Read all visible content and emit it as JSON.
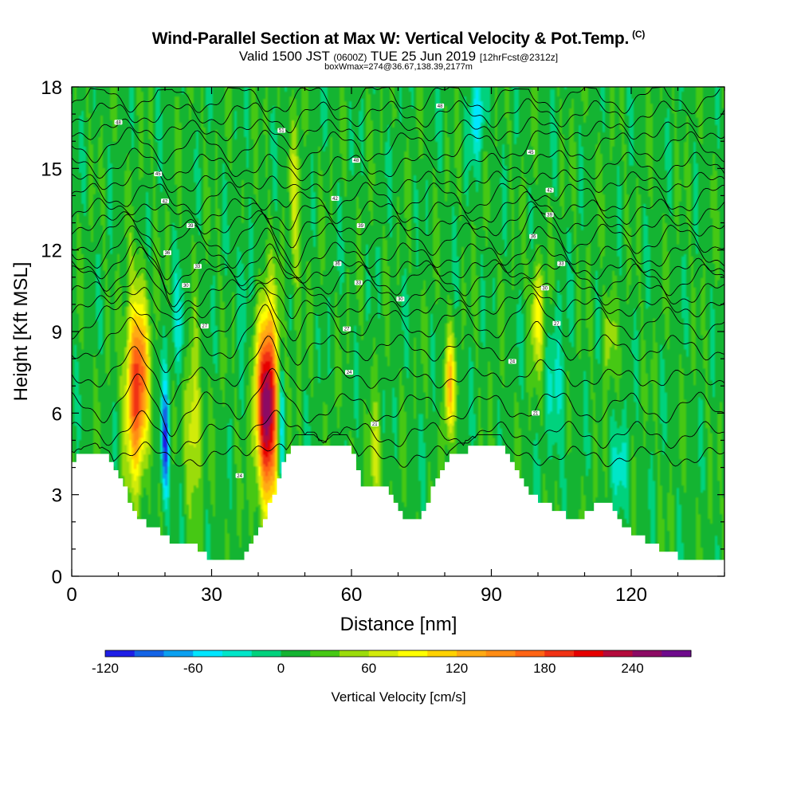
{
  "header": {
    "title": "Wind-Parallel Section at Max W: Vertical Velocity & Pot.Temp.",
    "title_mark": "(C)",
    "valid_prefix": "Valid 1500 JST",
    "valid_zulu": "(0600Z)",
    "valid_date": "TUE 25 Jun 2019",
    "forecast": "[12hrFcst@2312z]",
    "boxinfo": "boxWmax=274@36.67,138.39,2177m"
  },
  "chart_data": {
    "type": "heatmap",
    "xlabel": "Distance [nm]",
    "ylabel": "Height [Kft MSL]",
    "xlim": [
      0,
      140
    ],
    "ylim": [
      0,
      18
    ],
    "x_ticks": [
      0,
      30,
      60,
      90,
      120
    ],
    "y_ticks": [
      0,
      3,
      6,
      9,
      12,
      15,
      18
    ],
    "terrain_kft": [
      [
        0,
        4.3
      ],
      [
        5,
        4.6
      ],
      [
        8,
        4.3
      ],
      [
        10,
        3.7
      ],
      [
        12,
        3.0
      ],
      [
        14,
        2.3
      ],
      [
        16,
        1.9
      ],
      [
        18,
        1.8
      ],
      [
        20,
        1.5
      ],
      [
        22,
        1.1
      ],
      [
        25,
        1.1
      ],
      [
        28,
        1.0
      ],
      [
        30,
        0.6
      ],
      [
        33,
        0.5
      ],
      [
        36,
        0.6
      ],
      [
        38,
        0.9
      ],
      [
        40,
        1.5
      ],
      [
        42,
        2.3
      ],
      [
        44,
        3.3
      ],
      [
        46,
        4.3
      ],
      [
        48,
        4.9
      ],
      [
        52,
        4.9
      ],
      [
        54,
        4.6
      ],
      [
        56,
        4.9
      ],
      [
        59,
        4.9
      ],
      [
        61,
        4.3
      ],
      [
        62,
        3.3
      ],
      [
        66,
        3.3
      ],
      [
        69,
        3.0
      ],
      [
        71,
        2.3
      ],
      [
        73,
        2.0
      ],
      [
        75,
        2.3
      ],
      [
        77,
        3.0
      ],
      [
        79,
        3.7
      ],
      [
        81,
        4.3
      ],
      [
        83,
        4.6
      ],
      [
        85,
        4.6
      ],
      [
        87,
        4.9
      ],
      [
        92,
        4.9
      ],
      [
        94,
        4.3
      ],
      [
        96,
        3.7
      ],
      [
        98,
        3.0
      ],
      [
        102,
        2.6
      ],
      [
        106,
        2.3
      ],
      [
        108,
        2.0
      ],
      [
        110,
        2.3
      ],
      [
        112,
        2.6
      ],
      [
        114,
        2.9
      ],
      [
        116,
        2.6
      ],
      [
        118,
        2.0
      ],
      [
        120,
        1.7
      ],
      [
        122,
        1.4
      ],
      [
        124,
        1.2
      ],
      [
        127,
        1.0
      ],
      [
        129,
        0.8
      ],
      [
        131,
        0.7
      ],
      [
        133,
        0.7
      ],
      [
        140,
        0.7
      ]
    ],
    "updrafts": [
      {
        "x": 14,
        "y": 7.0,
        "sx": 2.3,
        "sy": 3.2,
        "w": 185
      },
      {
        "x": 26,
        "y": 5.6,
        "sx": 1.6,
        "sy": 2.8,
        "w": 75
      },
      {
        "x": 42,
        "y": 6.2,
        "sx": 2.3,
        "sy": 3.4,
        "w": 255
      },
      {
        "x": 48,
        "y": 13.5,
        "sx": 1.2,
        "sy": 4.0,
        "w": 45
      },
      {
        "x": 65,
        "y": 4.2,
        "sx": 1.3,
        "sy": 1.6,
        "w": 60
      },
      {
        "x": 81,
        "y": 7.0,
        "sx": 1.1,
        "sy": 1.8,
        "w": 110
      },
      {
        "x": 100,
        "y": 9.7,
        "sx": 1.5,
        "sy": 1.9,
        "w": 75
      },
      {
        "x": 115,
        "y": 8.8,
        "sx": 1.2,
        "sy": 1.6,
        "w": 45
      }
    ],
    "downdrafts": [
      {
        "x": 20,
        "y": 4.8,
        "sx": 0.8,
        "sy": 2.2,
        "w": -125
      },
      {
        "x": 23,
        "y": 9.0,
        "sx": 1.3,
        "sy": 2.0,
        "w": -40
      },
      {
        "x": 45,
        "y": 5.5,
        "sx": 0.8,
        "sy": 2.6,
        "w": -90
      },
      {
        "x": 37,
        "y": 11.0,
        "sx": 1.5,
        "sy": 2.2,
        "w": -30
      },
      {
        "x": 87,
        "y": 17.0,
        "sx": 1.6,
        "sy": 1.6,
        "w": -60
      },
      {
        "x": 104,
        "y": 7.0,
        "sx": 2.2,
        "sy": 3.2,
        "w": -30
      },
      {
        "x": 118,
        "y": 4.0,
        "sx": 2.0,
        "sy": 1.6,
        "w": -35
      }
    ],
    "theta_labels": [
      {
        "x": 10,
        "y": 16.7,
        "text": "48"
      },
      {
        "x": 18.5,
        "y": 14.8,
        "text": "45"
      },
      {
        "x": 20,
        "y": 13.8,
        "text": "42"
      },
      {
        "x": 25.5,
        "y": 12.9,
        "text": "39"
      },
      {
        "x": 20.5,
        "y": 11.9,
        "text": "36"
      },
      {
        "x": 27,
        "y": 11.4,
        "text": "33"
      },
      {
        "x": 24.5,
        "y": 10.7,
        "text": "30"
      },
      {
        "x": 28.5,
        "y": 9.2,
        "text": "27"
      },
      {
        "x": 36,
        "y": 3.7,
        "text": "24"
      },
      {
        "x": 45,
        "y": 16.4,
        "text": "51"
      },
      {
        "x": 61,
        "y": 15.3,
        "text": "48"
      },
      {
        "x": 56.5,
        "y": 13.9,
        "text": "42"
      },
      {
        "x": 62,
        "y": 12.9,
        "text": "39"
      },
      {
        "x": 57,
        "y": 11.5,
        "text": "36"
      },
      {
        "x": 61.5,
        "y": 10.8,
        "text": "33"
      },
      {
        "x": 70.5,
        "y": 10.2,
        "text": "30"
      },
      {
        "x": 59,
        "y": 9.1,
        "text": "27"
      },
      {
        "x": 59.5,
        "y": 7.5,
        "text": "24"
      },
      {
        "x": 65,
        "y": 5.6,
        "text": "21"
      },
      {
        "x": 79,
        "y": 17.3,
        "text": "48"
      },
      {
        "x": 98.5,
        "y": 15.6,
        "text": "45"
      },
      {
        "x": 102.5,
        "y": 14.2,
        "text": "42"
      },
      {
        "x": 102.5,
        "y": 13.3,
        "text": "39"
      },
      {
        "x": 99,
        "y": 12.5,
        "text": "36"
      },
      {
        "x": 105,
        "y": 11.5,
        "text": "33"
      },
      {
        "x": 101.5,
        "y": 10.6,
        "text": "30"
      },
      {
        "x": 104,
        "y": 9.3,
        "text": "27"
      },
      {
        "x": 94.5,
        "y": 7.9,
        "text": "24"
      },
      {
        "x": 99.5,
        "y": 6.0,
        "text": "21"
      }
    ],
    "theta_levels_kft": [
      4.4,
      5.2,
      6.2,
      7.3,
      8.4,
      9.3,
      9.9,
      10.4,
      10.9,
      11.3,
      11.8,
      12.4,
      12.9,
      13.4,
      13.9,
      14.5,
      15.1,
      15.8,
      16.4,
      17.0,
      17.6
    ],
    "colorbar": {
      "label": "Vertical Velocity [cm/s]",
      "ticks": [
        "-120",
        "-60",
        "0",
        "60",
        "120",
        "180",
        "240"
      ],
      "tick_values": [
        -120,
        -60,
        0,
        60,
        120,
        180,
        240
      ],
      "bins": [
        -120,
        280
      ],
      "bin_width": 20,
      "colors": [
        "#1e1ee6",
        "#1464e6",
        "#0aa0f0",
        "#00e6ff",
        "#00e6c8",
        "#00d27d",
        "#14b432",
        "#46c814",
        "#9bdc0a",
        "#d2eb0a",
        "#ffff00",
        "#ffd200",
        "#ffaa14",
        "#ff8c14",
        "#ff6414",
        "#f03214",
        "#e60000",
        "#b40a3c",
        "#8c0a64",
        "#6e0a8c"
      ]
    }
  }
}
